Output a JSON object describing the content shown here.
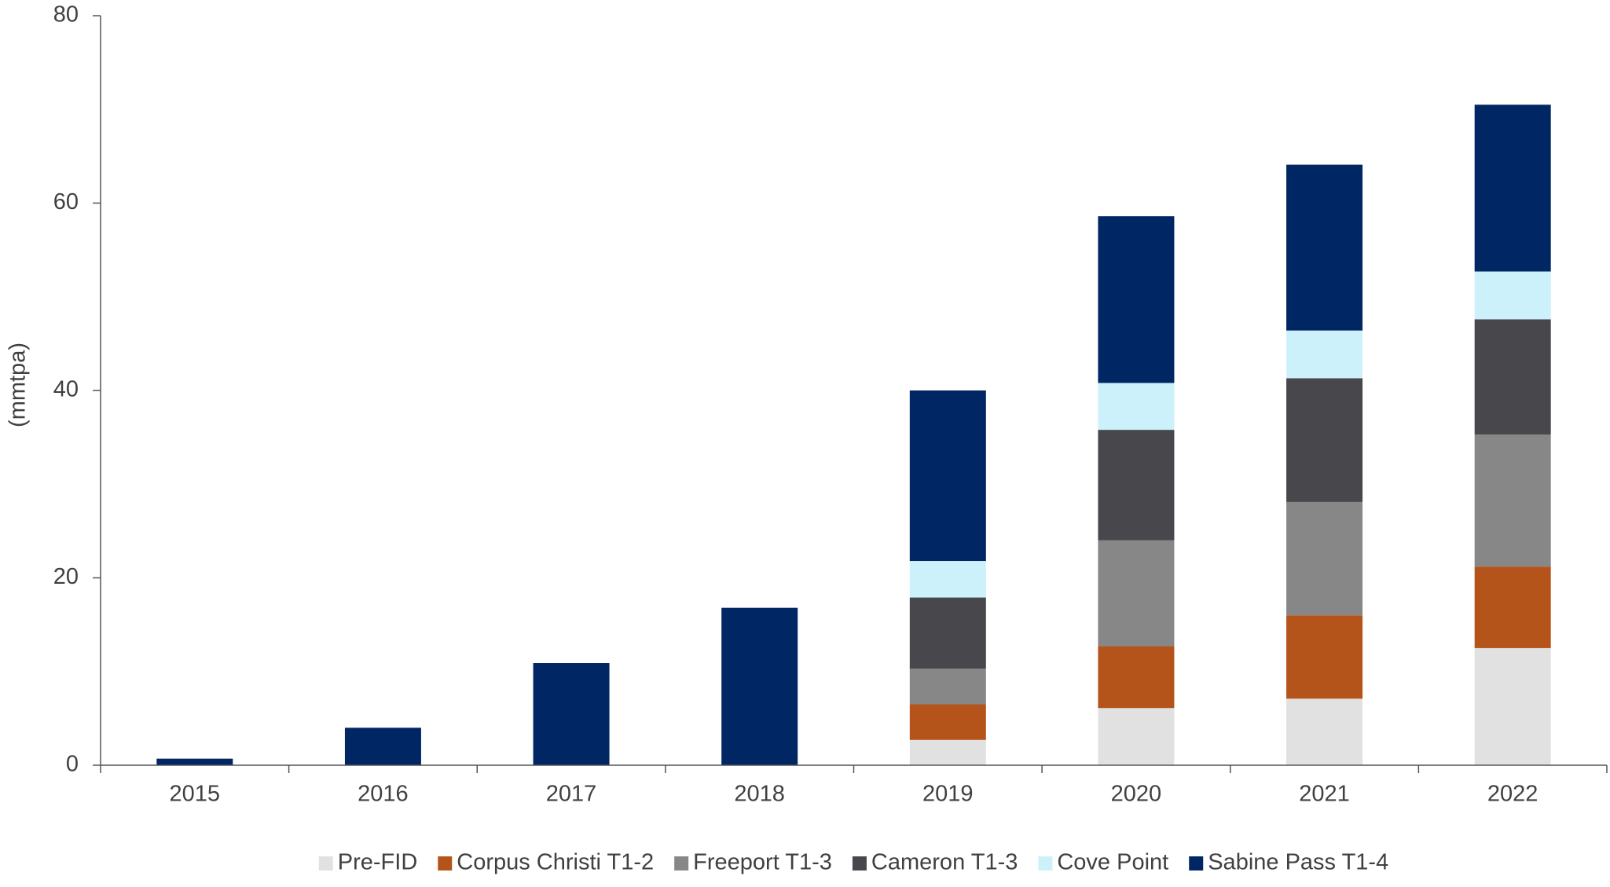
{
  "chart_data": {
    "type": "stacked_bar",
    "ylabel": "(mmtpa)",
    "categories": [
      "2015",
      "2016",
      "2017",
      "2018",
      "2019",
      "2020",
      "2021",
      "2022"
    ],
    "series": [
      {
        "name": "Pre-FID",
        "color": "#e1e1e1",
        "values": [
          0,
          0,
          0,
          0,
          2.7,
          6.1,
          7.1,
          12.5
        ]
      },
      {
        "name": "Corpus Christi T1-2",
        "color": "#b5541a",
        "values": [
          0,
          0,
          0,
          0,
          3.8,
          6.6,
          8.9,
          8.7
        ]
      },
      {
        "name": "Freeport T1-3",
        "color": "#878787",
        "values": [
          0,
          0,
          0,
          0,
          3.8,
          11.3,
          12.1,
          14.1
        ]
      },
      {
        "name": "Cameron T1-3",
        "color": "#48484c",
        "values": [
          0,
          0,
          0,
          0,
          7.6,
          11.8,
          13.2,
          12.3
        ]
      },
      {
        "name": "Cove Point",
        "color": "#cdf1fa",
        "values": [
          0,
          0,
          0,
          0,
          3.9,
          5.0,
          5.1,
          5.1
        ]
      },
      {
        "name": "Sabine Pass T1-4",
        "color": "#002663",
        "values": [
          0.7,
          4.0,
          10.9,
          16.8,
          18.2,
          17.8,
          17.7,
          17.8
        ]
      }
    ],
    "ylim": [
      0,
      80
    ],
    "yticks": [
      0,
      20,
      40,
      60,
      80
    ],
    "legend": "bottom"
  }
}
